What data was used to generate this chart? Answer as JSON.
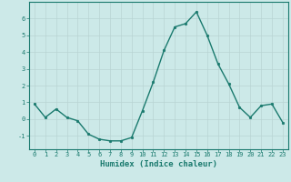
{
  "xlabel": "Humidex (Indice chaleur)",
  "x": [
    0,
    1,
    2,
    3,
    4,
    5,
    6,
    7,
    8,
    9,
    10,
    11,
    12,
    13,
    14,
    15,
    16,
    17,
    18,
    19,
    20,
    21,
    22,
    23
  ],
  "y": [
    0.9,
    0.1,
    0.6,
    0.1,
    -0.1,
    -0.9,
    -1.2,
    -1.3,
    -1.3,
    -1.1,
    0.5,
    2.2,
    4.1,
    5.5,
    5.7,
    6.4,
    5.0,
    3.3,
    2.1,
    0.7,
    0.1,
    0.8,
    0.9,
    -0.2
  ],
  "line_color": "#1a7a6e",
  "marker": "o",
  "markersize": 1.8,
  "linewidth": 1.0,
  "bg_color": "#cce9e8",
  "grid_color": "#b8d4d3",
  "axis_color": "#1a7a6e",
  "tick_color": "#1a7a6e",
  "ylim": [
    -1.8,
    7.0
  ],
  "yticks": [
    -1,
    0,
    1,
    2,
    3,
    4,
    5,
    6
  ],
  "xlim": [
    -0.5,
    23.5
  ],
  "xticks": [
    0,
    1,
    2,
    3,
    4,
    5,
    6,
    7,
    8,
    9,
    10,
    11,
    12,
    13,
    14,
    15,
    16,
    17,
    18,
    19,
    20,
    21,
    22,
    23
  ],
  "tick_fontsize": 5.0,
  "xlabel_fontsize": 6.5
}
